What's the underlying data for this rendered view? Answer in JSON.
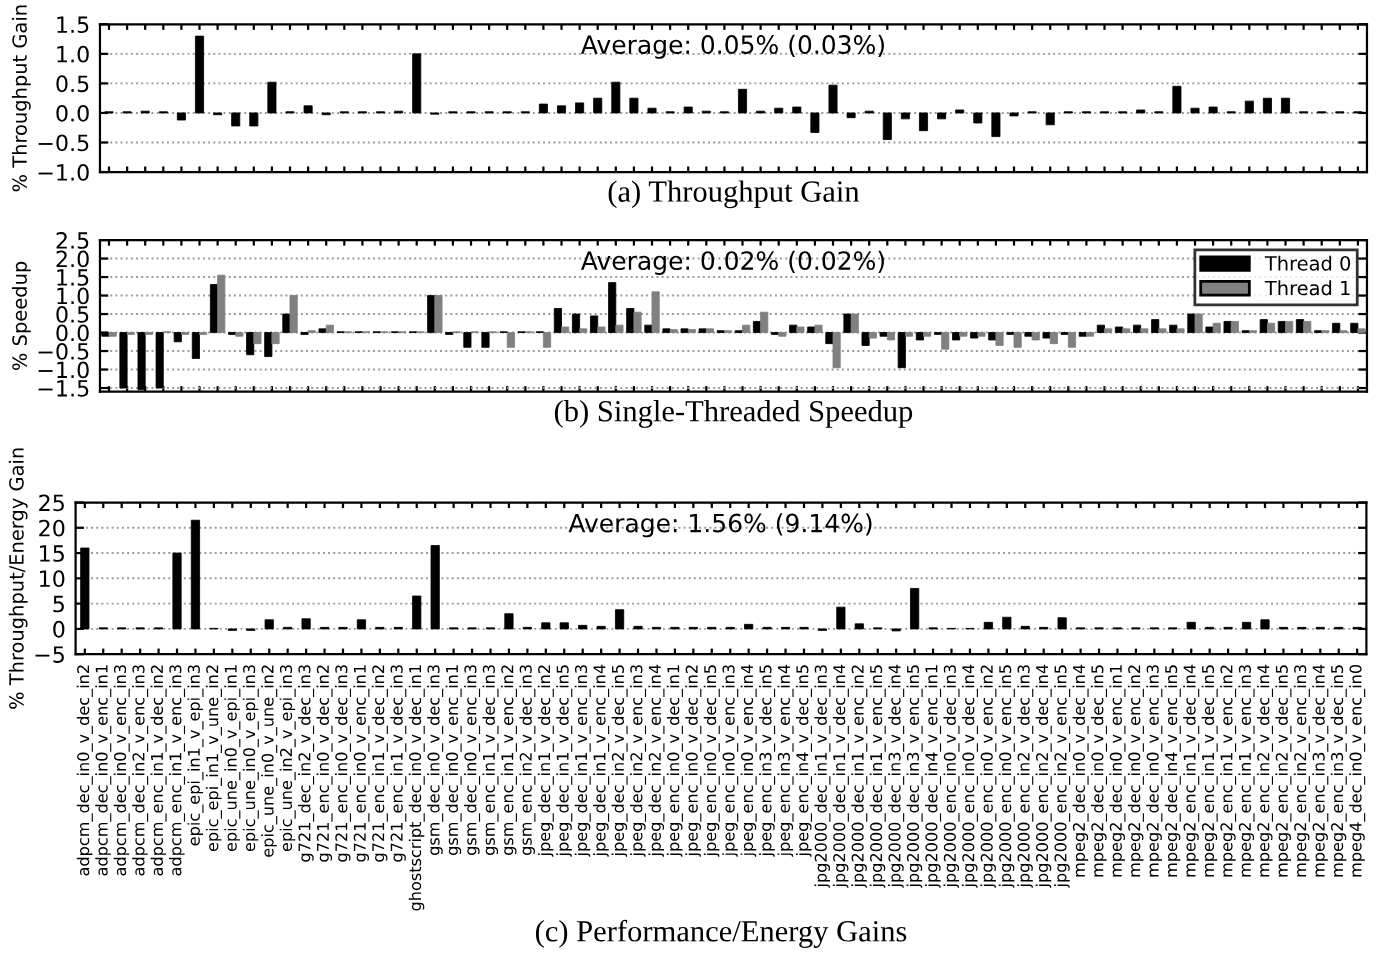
{
  "chart_data": [
    {
      "type": "bar",
      "xlabel": "(a) Throughput Gain",
      "ylabel": "% Throughput Gain",
      "annotations": [
        "Average: 0.05% (0.03%)"
      ],
      "tick_labels": "y",
      "grid": "y",
      "color": "#000000",
      "categories": [
        null,
        null,
        null,
        null,
        null,
        null,
        null,
        null,
        null,
        null,
        null,
        null,
        null,
        null,
        null,
        null,
        null,
        null,
        null,
        null,
        null,
        null,
        null,
        null,
        null,
        null,
        null,
        null,
        null,
        null,
        null,
        null,
        null,
        null,
        null,
        null,
        null,
        null,
        null,
        null,
        null,
        null,
        null,
        null,
        null,
        null,
        null,
        null,
        null,
        null,
        null,
        null,
        null,
        null,
        null,
        null,
        null,
        null,
        null,
        null,
        null,
        null,
        null,
        null,
        null,
        null,
        null,
        null,
        null,
        null
      ],
      "values": [
        0.02,
        0.02,
        0.03,
        0.02,
        -0.12,
        1.3,
        -0.03,
        -0.22,
        -0.22,
        0.52,
        0.02,
        0.12,
        -0.03,
        0.02,
        0.02,
        0.02,
        0.03,
        1.0,
        -0.02,
        0.02,
        0.02,
        0.02,
        0.02,
        0.02,
        0.15,
        0.12,
        0.17,
        0.25,
        0.52,
        0.25,
        0.08,
        0.02,
        0.1,
        0.03,
        0.02,
        0.4,
        0.03,
        0.08,
        0.1,
        -0.33,
        0.47,
        -0.08,
        0.03,
        -0.45,
        -0.1,
        -0.3,
        -0.1,
        0.05,
        -0.17,
        -0.4,
        -0.05,
        0.02,
        -0.2,
        0.02,
        0.02,
        0.02,
        0.02,
        0.05,
        0.02,
        0.45,
        0.08,
        0.1,
        0.02,
        0.2,
        0.25,
        0.25,
        0.02,
        0.02,
        0.02,
        0.02
      ],
      "ylim": [
        -1.0,
        1.5
      ],
      "yticks": [
        {
          "value": -1.0,
          "label": "−1.0"
        },
        {
          "value": -0.5,
          "label": "−0.5"
        },
        {
          "value": 0,
          "label": "0.0"
        },
        0.5,
        {
          "value": 1,
          "label": "1.0"
        },
        1.5
      ]
    },
    {
      "type": "bar",
      "xlabel": "(b) Single-Threaded Speedup",
      "ylabel": "% Speedup",
      "annotations": [
        "Average: 0.02% (0.02%)"
      ],
      "tick_labels": "y",
      "grid": "y",
      "legend": "top right",
      "categories": [
        null,
        null,
        null,
        null,
        null,
        null,
        null,
        null,
        null,
        null,
        null,
        null,
        null,
        null,
        null,
        null,
        null,
        null,
        null,
        null,
        null,
        null,
        null,
        null,
        null,
        null,
        null,
        null,
        null,
        null,
        null,
        null,
        null,
        null,
        null,
        null,
        null,
        null,
        null,
        null,
        null,
        null,
        null,
        null,
        null,
        null,
        null,
        null,
        null,
        null,
        null,
        null,
        null,
        null,
        null,
        null,
        null,
        null,
        null,
        null,
        null,
        null,
        null,
        null,
        null,
        null,
        null,
        null,
        null,
        null
      ],
      "series": [
        {
          "name": "Thread 0",
          "color": "#000000",
          "values": [
            -0.1,
            -1.5,
            -1.55,
            -1.5,
            -0.25,
            -0.7,
            1.3,
            -0.05,
            -0.6,
            -0.65,
            0.5,
            -0.05,
            0.1,
            0.02,
            0.02,
            0.02,
            0.02,
            0.02,
            1.0,
            -0.05,
            -0.4,
            -0.4,
            0.02,
            0.02,
            0.02,
            0.65,
            0.5,
            0.45,
            1.35,
            0.65,
            0.2,
            0.1,
            0.1,
            0.1,
            0.05,
            0.05,
            0.3,
            -0.05,
            0.2,
            0.15,
            -0.3,
            0.5,
            -0.35,
            -0.1,
            -0.95,
            -0.2,
            -0.05,
            -0.2,
            -0.15,
            -0.2,
            -0.05,
            -0.1,
            -0.15,
            -0.05,
            -0.1,
            0.2,
            0.15,
            0.2,
            0.35,
            0.2,
            0.5,
            0.15,
            0.3,
            0.05,
            0.35,
            0.3,
            0.35,
            0.05,
            0.25,
            0.25
          ]
        },
        {
          "name": "Thread 1",
          "color": "#808080",
          "values": [
            -0.1,
            -0.05,
            -0.05,
            0.02,
            -0.05,
            -0.05,
            1.55,
            -0.1,
            -0.3,
            -0.3,
            1.0,
            0.05,
            0.2,
            0.02,
            0.02,
            0.02,
            0.02,
            0.02,
            1.0,
            0.02,
            0.02,
            0.02,
            -0.4,
            0.02,
            -0.4,
            0.15,
            0.1,
            0.15,
            0.2,
            0.55,
            1.1,
            0.08,
            0.08,
            0.1,
            0.05,
            0.2,
            0.55,
            -0.1,
            0.15,
            0.2,
            -0.95,
            0.5,
            -0.15,
            -0.2,
            -0.1,
            -0.1,
            -0.45,
            -0.1,
            -0.1,
            -0.35,
            -0.4,
            -0.2,
            -0.3,
            -0.4,
            -0.1,
            0.1,
            0.1,
            0.1,
            0.1,
            0.1,
            0.5,
            0.25,
            0.3,
            0.05,
            0.25,
            0.3,
            0.3,
            0.05,
            0.05,
            0.1
          ]
        }
      ],
      "ylim": [
        -1.6,
        2.5
      ],
      "yticks": [
        {
          "value": -1.5,
          "label": "−1.5"
        },
        {
          "value": -1.0,
          "label": "−1.0"
        },
        {
          "value": -0.5,
          "label": "−0.5"
        },
        {
          "value": 0,
          "label": "0.0"
        },
        0.5,
        {
          "value": 1,
          "label": "1.0"
        },
        1.5,
        {
          "value": 2,
          "label": "2.0"
        },
        2.5
      ]
    },
    {
      "type": "bar",
      "xlabel": "(c) Performance/Energy Gains",
      "ylabel": "% Throughput/Energy Gain",
      "annotations": [
        "Average: 1.56% (9.14%)"
      ],
      "grid": "y",
      "color": "#000000",
      "categories": [
        "adpcm_dec_in0_v_dec_in2",
        "adpcm_dec_in0_v_enc_in1",
        "adpcm_dec_in0_v_enc_in3",
        "adpcm_dec_in2_v_enc_in3",
        "adpcm_enc_in1_v_dec_in2",
        "adpcm_enc_in1_v_enc_in3",
        "epic_epi_in1_v_epi_in3",
        "epic_epi_in1_v_une_in2",
        "epic_une_in0_v_epi_in1",
        "epic_une_in0_v_epi_in3",
        "epic_une_in0_v_une_in2",
        "epic_une_in2_v_epi_in3",
        "g721_dec_in2_v_dec_in3",
        "g721_enc_in0_v_dec_in2",
        "g721_enc_in0_v_dec_in3",
        "g721_enc_in0_v_enc_in1",
        "g721_enc_in1_v_dec_in2",
        "g721_enc_in1_v_dec_in3",
        "ghostscript_dec_in0_v_dec_in1",
        "gsm_dec_in0_v_dec_in3",
        "gsm_dec_in0_v_enc_in1",
        "gsm_dec_in0_v_enc_in3",
        "gsm_enc_in1_v_dec_in3",
        "gsm_enc_in1_v_enc_in2",
        "gsm_enc_in2_v_dec_in3",
        "jpeg_dec_in1_v_dec_in2",
        "jpeg_dec_in1_v_dec_in5",
        "jpeg_dec_in1_v_enc_in3",
        "jpeg_dec_in1_v_enc_in4",
        "jpeg_dec_in2_v_dec_in5",
        "jpeg_dec_in2_v_enc_in3",
        "jpeg_dec_in2_v_enc_in4",
        "jpeg_enc_in0_v_dec_in1",
        "jpeg_enc_in0_v_dec_in2",
        "jpeg_enc_in0_v_dec_in5",
        "jpeg_enc_in0_v_enc_in3",
        "jpeg_enc_in0_v_enc_in4",
        "jpeg_enc_in3_v_dec_in5",
        "jpeg_enc_in3_v_enc_in4",
        "jpeg_enc_in4_v_dec_in5",
        "jpg2000_dec_in1_v_dec_in3",
        "jpg2000_dec_in1_v_dec_in4",
        "jpg2000_dec_in1_v_enc_in2",
        "jpg2000_dec_in1_v_enc_in5",
        "jpg2000_dec_in3_v_dec_in4",
        "jpg2000_dec_in3_v_enc_in5",
        "jpg2000_dec_in4_v_enc_in1",
        "jpg2000_enc_in0_v_dec_in3",
        "jpg2000_enc_in0_v_dec_in4",
        "jpg2000_enc_in0_v_enc_in2",
        "jpg2000_enc_in0_v_enc_in5",
        "jpg2000_enc_in2_v_dec_in3",
        "jpg2000_enc_in2_v_dec_in4",
        "jpg2000_enc_in2_v_enc_in5",
        "mpeg2_dec_in0_v_dec_in4",
        "mpeg2_dec_in0_v_dec_in5",
        "mpeg2_dec_in0_v_enc_in1",
        "mpeg2_dec_in0_v_enc_in2",
        "mpeg2_dec_in0_v_enc_in3",
        "mpeg2_dec_in4_v_enc_in5",
        "mpeg2_enc_in1_v_dec_in4",
        "mpeg2_enc_in1_v_dec_in5",
        "mpeg2_enc_in1_v_enc_in2",
        "mpeg2_enc_in1_v_enc_in3",
        "mpeg2_enc_in2_v_dec_in4",
        "mpeg2_enc_in2_v_dec_in5",
        "mpeg2_enc_in2_v_enc_in3",
        "mpeg2_enc_in3_v_dec_in4",
        "mpeg2_enc_in3_v_dec_in5",
        "mpeg4_dec_in0_v_enc_in0"
      ],
      "values": [
        16,
        0.2,
        0.2,
        0.2,
        0.2,
        15,
        21.5,
        0.1,
        -0.3,
        -0.3,
        1.8,
        0.3,
        2.0,
        0.3,
        0.3,
        1.8,
        0.3,
        0.3,
        6.5,
        16.5,
        0.2,
        0.2,
        0.2,
        3.0,
        0.3,
        1.2,
        1.2,
        0.7,
        0.5,
        3.8,
        0.5,
        0.3,
        0.3,
        0.3,
        0.3,
        0.3,
        0.9,
        0.3,
        0.3,
        0.3,
        -0.3,
        4.3,
        1.0,
        0.2,
        -0.4,
        8.0,
        0.2,
        0.1,
        0.1,
        1.3,
        2.3,
        0.5,
        0.3,
        2.2,
        0.2,
        0.2,
        0.2,
        0.2,
        0.2,
        0.2,
        1.3,
        0.3,
        0.3,
        1.3,
        1.8,
        0.3,
        0.3,
        0.3,
        0.3,
        0.3
      ],
      "ylim": [
        -5,
        25
      ],
      "yticks": [
        {
          "value": -5,
          "label": "−5"
        },
        0,
        5,
        10,
        15,
        20,
        25
      ]
    }
  ]
}
